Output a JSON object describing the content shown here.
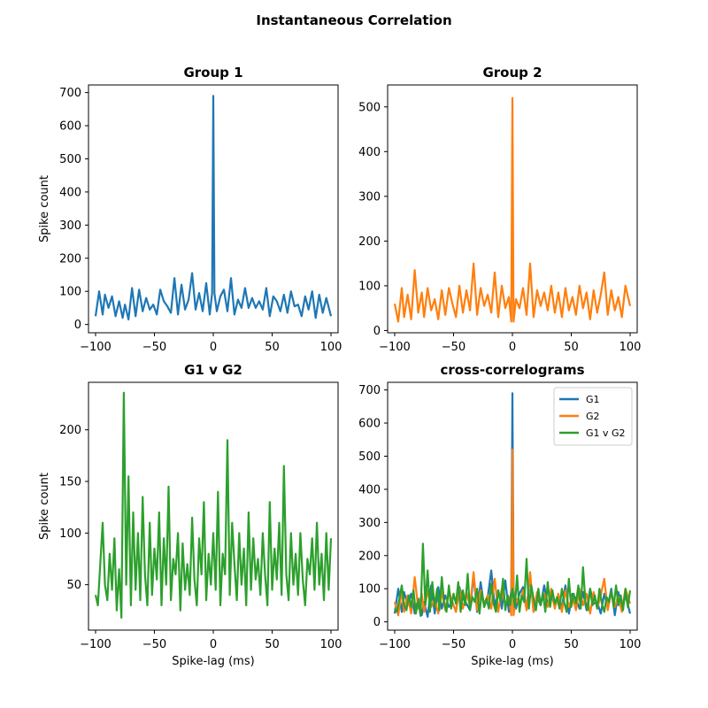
{
  "figure": {
    "suptitle": "Instantaneous Correlation"
  },
  "chart_data": [
    {
      "type": "line",
      "title": "Group 1",
      "xlabel": "",
      "ylabel": "Spike count",
      "xlim": [
        -106,
        106
      ],
      "ylim": [
        -25,
        723
      ],
      "xticks": [
        -100,
        -50,
        0,
        50,
        100
      ],
      "yticks": [
        0,
        100,
        200,
        300,
        400,
        500,
        600,
        700
      ],
      "grid": false,
      "series": [
        {
          "name": "G1",
          "color": "#1f77b4",
          "x": [
            -100,
            -97,
            -94,
            -92,
            -89,
            -86,
            -83,
            -80,
            -77,
            -75,
            -72,
            -69,
            -66,
            -63,
            -60,
            -57,
            -54,
            -51,
            -48,
            -45,
            -42,
            -39,
            -36,
            -33,
            -30,
            -27,
            -24,
            -21,
            -18,
            -15,
            -12,
            -9,
            -6,
            -3,
            -1,
            0,
            1,
            3,
            6,
            9,
            12,
            15,
            18,
            21,
            24,
            27,
            30,
            33,
            36,
            39,
            42,
            45,
            48,
            51,
            54,
            57,
            60,
            63,
            66,
            69,
            72,
            75,
            78,
            81,
            84,
            87,
            90,
            93,
            96,
            100
          ],
          "y": [
            25,
            100,
            30,
            90,
            50,
            85,
            25,
            70,
            20,
            60,
            15,
            110,
            25,
            105,
            40,
            80,
            45,
            60,
            30,
            105,
            70,
            55,
            35,
            140,
            30,
            120,
            45,
            75,
            155,
            45,
            95,
            40,
            125,
            30,
            95,
            690,
            95,
            40,
            85,
            105,
            40,
            140,
            30,
            75,
            50,
            110,
            50,
            80,
            50,
            70,
            45,
            110,
            25,
            85,
            70,
            40,
            90,
            35,
            100,
            55,
            60,
            25,
            85,
            45,
            100,
            20,
            90,
            35,
            80,
            25
          ]
        }
      ]
    },
    {
      "type": "line",
      "title": "Group 2",
      "xlabel": "",
      "ylabel": "",
      "xlim": [
        -106,
        106
      ],
      "ylim": [
        -5,
        549
      ],
      "xticks": [
        -100,
        -50,
        0,
        50,
        100
      ],
      "yticks": [
        0,
        100,
        200,
        300,
        400,
        500
      ],
      "grid": false,
      "series": [
        {
          "name": "G2",
          "color": "#ff7f0e",
          "x": [
            -100,
            -97,
            -94,
            -92,
            -89,
            -86,
            -83,
            -80,
            -77,
            -75,
            -72,
            -69,
            -66,
            -63,
            -60,
            -57,
            -54,
            -51,
            -48,
            -45,
            -42,
            -39,
            -36,
            -33,
            -30,
            -27,
            -24,
            -21,
            -18,
            -15,
            -12,
            -9,
            -6,
            -3,
            -1,
            0,
            1,
            3,
            6,
            9,
            12,
            15,
            18,
            21,
            24,
            27,
            30,
            33,
            36,
            39,
            42,
            45,
            48,
            51,
            54,
            57,
            60,
            63,
            66,
            69,
            72,
            75,
            78,
            81,
            84,
            87,
            90,
            93,
            96,
            100
          ],
          "y": [
            60,
            20,
            95,
            30,
            80,
            25,
            135,
            40,
            85,
            30,
            95,
            45,
            70,
            25,
            90,
            35,
            95,
            60,
            30,
            100,
            40,
            90,
            45,
            150,
            35,
            95,
            55,
            80,
            40,
            130,
            30,
            100,
            50,
            75,
            20,
            520,
            20,
            70,
            50,
            95,
            35,
            150,
            30,
            90,
            55,
            85,
            45,
            100,
            40,
            85,
            30,
            95,
            45,
            75,
            35,
            100,
            50,
            85,
            25,
            90,
            40,
            80,
            130,
            35,
            90,
            45,
            75,
            30,
            100,
            55
          ]
        }
      ]
    },
    {
      "type": "line",
      "title": "G1 v G2",
      "xlabel": "Spike-lag (ms)",
      "ylabel": "Spike count",
      "xlim": [
        -106,
        106
      ],
      "ylim": [
        6,
        246
      ],
      "xticks": [
        -100,
        -50,
        0,
        50,
        100
      ],
      "yticks": [
        50,
        100,
        150,
        200
      ],
      "grid": false,
      "series": [
        {
          "name": "G1 v G2",
          "color": "#2ca02c",
          "x": [
            -100,
            -98,
            -96,
            -94,
            -92,
            -90,
            -88,
            -86,
            -84,
            -82,
            -80,
            -78,
            -76,
            -74,
            -72,
            -70,
            -68,
            -66,
            -64,
            -62,
            -60,
            -58,
            -56,
            -54,
            -52,
            -50,
            -48,
            -46,
            -44,
            -42,
            -40,
            -38,
            -36,
            -34,
            -32,
            -30,
            -28,
            -26,
            -24,
            -22,
            -20,
            -18,
            -16,
            -14,
            -12,
            -10,
            -8,
            -6,
            -4,
            -2,
            0,
            2,
            4,
            6,
            8,
            10,
            12,
            14,
            16,
            18,
            20,
            22,
            24,
            26,
            28,
            30,
            32,
            34,
            36,
            38,
            40,
            42,
            44,
            46,
            48,
            50,
            52,
            54,
            56,
            58,
            60,
            62,
            64,
            66,
            68,
            70,
            72,
            74,
            76,
            78,
            80,
            82,
            84,
            86,
            88,
            90,
            92,
            94,
            96,
            98,
            100
          ],
          "y": [
            40,
            30,
            70,
            110,
            50,
            35,
            80,
            45,
            95,
            25,
            65,
            18,
            236,
            50,
            155,
            30,
            120,
            45,
            100,
            35,
            135,
            60,
            30,
            110,
            40,
            85,
            55,
            120,
            30,
            95,
            50,
            145,
            35,
            75,
            60,
            100,
            25,
            90,
            45,
            70,
            40,
            115,
            55,
            30,
            95,
            60,
            130,
            35,
            80,
            50,
            100,
            45,
            140,
            30,
            80,
            60,
            190,
            40,
            110,
            70,
            35,
            100,
            50,
            85,
            30,
            120,
            45,
            95,
            55,
            75,
            40,
            100,
            60,
            30,
            130,
            45,
            85,
            55,
            110,
            40,
            165,
            60,
            35,
            100,
            50,
            80,
            40,
            100,
            55,
            30,
            75,
            60,
            95,
            45,
            110,
            50,
            80,
            35,
            100,
            45,
            95
          ]
        }
      ]
    },
    {
      "type": "line",
      "title": "cross-correlograms",
      "xlabel": "Spike-lag (ms)",
      "ylabel": "",
      "xlim": [
        -106,
        106
      ],
      "ylim": [
        -25,
        723
      ],
      "xticks": [
        -100,
        -50,
        0,
        50,
        100
      ],
      "yticks": [
        0,
        100,
        200,
        300,
        400,
        500,
        600,
        700
      ],
      "grid": false,
      "legend": "top-right",
      "overlay": [
        "G1",
        "G2",
        "G1 v G2"
      ]
    }
  ]
}
